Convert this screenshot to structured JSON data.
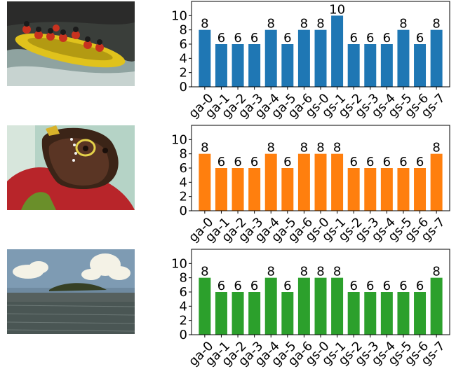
{
  "images": [
    {
      "subject": "rafting-photo"
    },
    {
      "subject": "child-face-paint-photo"
    },
    {
      "subject": "island-seascape-photo"
    }
  ],
  "chart_data": [
    {
      "type": "bar",
      "color": "#1f77b4",
      "categories": [
        "ga-0",
        "ga-1",
        "ga-2",
        "ga-3",
        "ga-4",
        "ga-5",
        "ga-6",
        "gs-0",
        "gs-1",
        "gs-2",
        "gs-3",
        "gs-4",
        "gs-5",
        "gs-6",
        "gs-7"
      ],
      "values": [
        8,
        6,
        6,
        6,
        8,
        6,
        8,
        8,
        10,
        6,
        6,
        6,
        8,
        6,
        8
      ],
      "ylim": [
        0,
        12
      ],
      "yticks": [
        0,
        2,
        4,
        6,
        8,
        10
      ],
      "grid": false,
      "bar_labels": true
    },
    {
      "type": "bar",
      "color": "#ff7f0e",
      "categories": [
        "ga-0",
        "ga-1",
        "ga-2",
        "ga-3",
        "ga-4",
        "ga-5",
        "ga-6",
        "gs-0",
        "gs-1",
        "gs-2",
        "gs-3",
        "gs-4",
        "gs-5",
        "gs-6",
        "gs-7"
      ],
      "values": [
        8,
        6,
        6,
        6,
        8,
        6,
        8,
        8,
        8,
        6,
        6,
        6,
        6,
        6,
        8
      ],
      "ylim": [
        0,
        12
      ],
      "yticks": [
        0,
        2,
        4,
        6,
        8,
        10
      ],
      "grid": false,
      "bar_labels": true
    },
    {
      "type": "bar",
      "color": "#2ca02c",
      "categories": [
        "ga-0",
        "ga-1",
        "ga-2",
        "ga-3",
        "ga-4",
        "ga-5",
        "ga-6",
        "gs-0",
        "gs-1",
        "gs-2",
        "gs-3",
        "gs-4",
        "gs-5",
        "gs-6",
        "gs-7"
      ],
      "values": [
        8,
        6,
        6,
        6,
        8,
        6,
        8,
        8,
        8,
        6,
        6,
        6,
        6,
        6,
        8
      ],
      "ylim": [
        0,
        12
      ],
      "yticks": [
        0,
        2,
        4,
        6,
        8,
        10
      ],
      "grid": false,
      "bar_labels": true
    }
  ]
}
